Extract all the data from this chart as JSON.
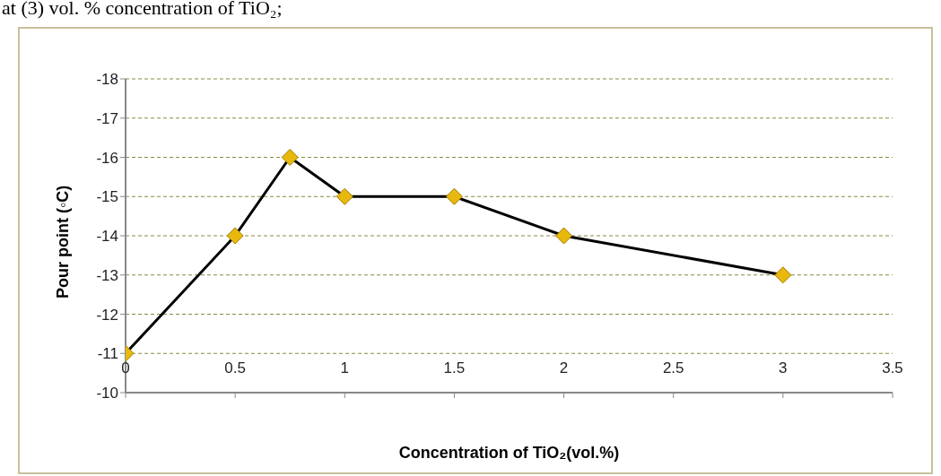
{
  "chart_data": {
    "type": "line",
    "xlabel": "Concentration of TiO₂(vol.%)",
    "ylabel": "Pour point (◦C)",
    "annotations": [
      "at (3) vol. % concentration of TiO₂;"
    ],
    "x": [
      0,
      0.5,
      0.75,
      1,
      1.5,
      2,
      3
    ],
    "series": [
      {
        "color": "#000000",
        "values": [
          -11,
          -14,
          -16,
          -15,
          -15,
          -14,
          -13
        ]
      }
    ],
    "xlim": [
      0,
      3.5
    ],
    "xticks": [
      0,
      0.5,
      1,
      1.5,
      2,
      2.5,
      3,
      3.5
    ],
    "ylim": [
      -10,
      -18
    ],
    "yticks": [
      -10,
      -11,
      -12,
      -13,
      -14,
      -15,
      -16,
      -17,
      -18
    ],
    "grid": "y",
    "legend": false,
    "marker": "diamond",
    "line_style": "solid"
  }
}
